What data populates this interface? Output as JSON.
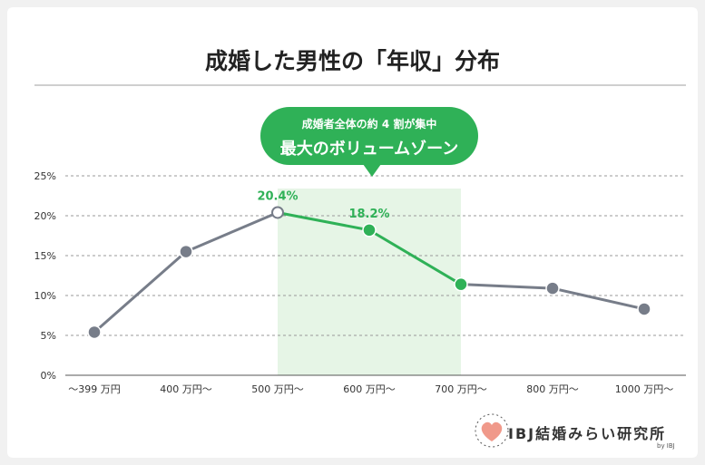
{
  "header": {
    "title": "成婚した男性の「年収」分布"
  },
  "callout": {
    "line1": "成婚者全体の約 4 割が集中",
    "line2": "最大のボリュームゾーン"
  },
  "brand": {
    "name": "IBJ結婚みらい研究所",
    "sub": "by IBJ",
    "icon": "heart-icon"
  },
  "colors": {
    "gray_series": "#777d89",
    "green_series": "#2fb157",
    "highlight_band": "#e6f5e6",
    "grid": "#999999"
  },
  "chart_data": {
    "type": "line",
    "title": "成婚した男性の「年収」分布",
    "categories": [
      "～399 万円",
      "400 万円～",
      "500 万円～",
      "600 万円～",
      "700 万円～",
      "800 万円～",
      "1000 万円～"
    ],
    "values": [
      5.4,
      15.5,
      20.4,
      18.2,
      11.4,
      10.9,
      8.3
    ],
    "data_labels": [
      {
        "index": 2,
        "text": "20.4%"
      },
      {
        "index": 3,
        "text": "18.2%"
      }
    ],
    "highlight_range": [
      2,
      4
    ],
    "yticks": [
      "0%",
      "5%",
      "10%",
      "15%",
      "20%",
      "25%"
    ],
    "ylim": [
      0,
      25
    ],
    "grid": true
  }
}
